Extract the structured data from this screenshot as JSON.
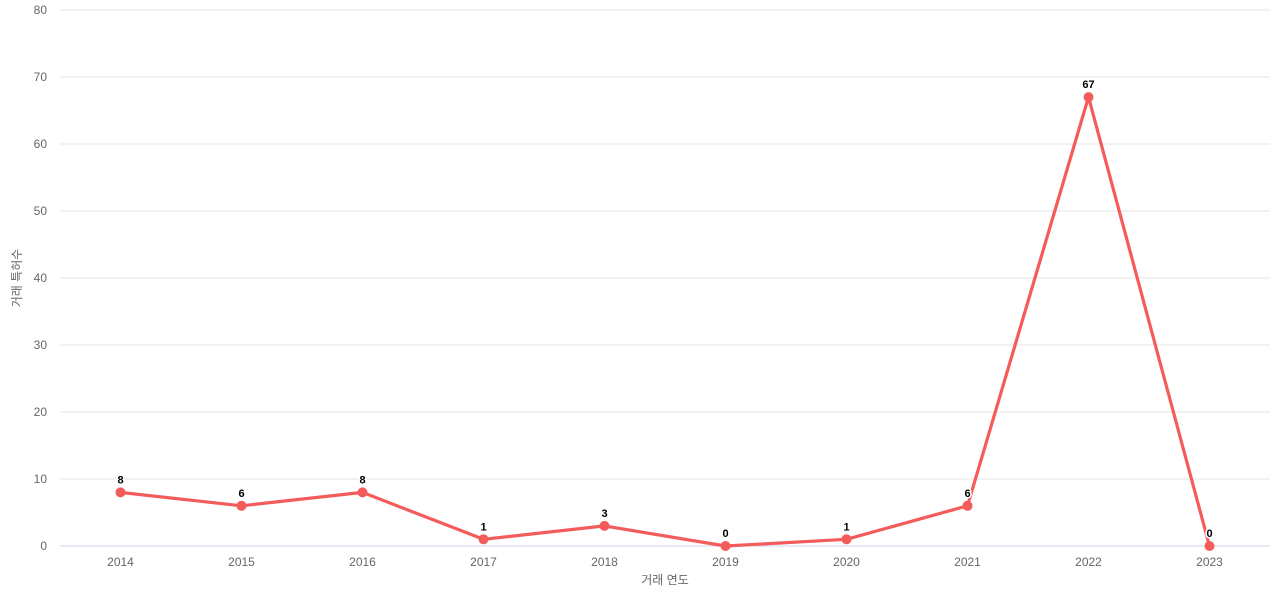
{
  "chart_data": {
    "type": "line",
    "categories": [
      "2014",
      "2015",
      "2016",
      "2017",
      "2018",
      "2019",
      "2020",
      "2021",
      "2022",
      "2023"
    ],
    "series": [
      {
        "name": "거래 특허수",
        "values": [
          8,
          6,
          8,
          1,
          3,
          0,
          1,
          6,
          67,
          0
        ],
        "color": "#f45b5b"
      }
    ],
    "title": "",
    "xlabel": "거래 연도",
    "ylabel": "거래 특허수",
    "ylim": [
      0,
      80
    ],
    "yticks": [
      0,
      10,
      20,
      30,
      40,
      50,
      60,
      70,
      80
    ],
    "grid": true,
    "legend_position": "none",
    "data_labels_visible": true,
    "colors": {
      "series_line": "#f45b5b",
      "marker_fill": "#f45b5b",
      "grid_line": "#e6e6e6",
      "axis_line": "#ccd6eb",
      "tick_label": "#666666",
      "axis_title": "#666666",
      "data_label": "#000000",
      "background": "#ffffff"
    }
  }
}
